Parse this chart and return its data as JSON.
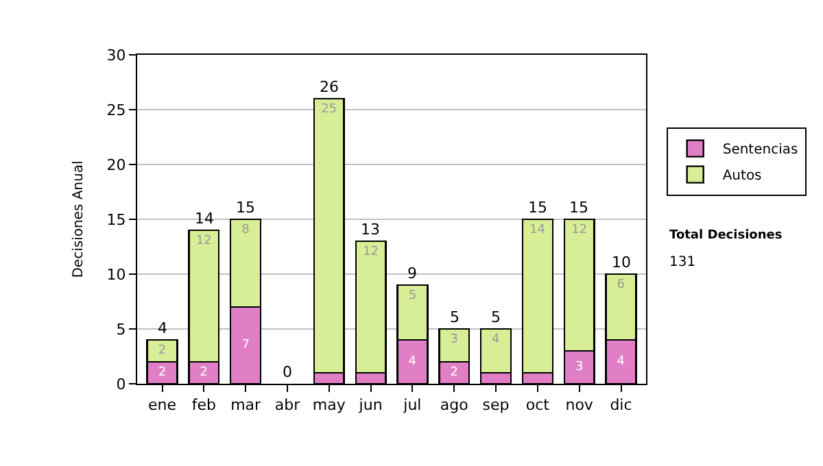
{
  "chart_data": {
    "type": "bar",
    "stacked": true,
    "ylabel": "Decisiones Anual",
    "categories": [
      "ene",
      "feb",
      "mar",
      "abr",
      "may",
      "jun",
      "jul",
      "ago",
      "sep",
      "oct",
      "nov",
      "dic"
    ],
    "series": [
      {
        "name": "Sentencias",
        "color": "#e07fc6",
        "values": [
          2,
          2,
          7,
          0,
          1,
          1,
          4,
          2,
          1,
          1,
          3,
          4
        ],
        "value_labels": [
          "2",
          "2",
          "7",
          null,
          null,
          null,
          "4",
          "2",
          null,
          null,
          "3",
          "4"
        ]
      },
      {
        "name": "Autos",
        "color": "#d8ee96",
        "values": [
          2,
          12,
          8,
          0,
          25,
          12,
          5,
          3,
          4,
          14,
          12,
          6
        ],
        "value_labels": [
          "2",
          "12",
          "8",
          null,
          "25",
          "12",
          "5",
          "3",
          "4",
          "14",
          "12",
          "6"
        ]
      }
    ],
    "totals": [
      "4",
      "14",
      "15",
      "0",
      "26",
      "13",
      "9",
      "5",
      "5",
      "15",
      "15",
      "10"
    ],
    "ylim": [
      0,
      30
    ],
    "yticks": [
      0,
      5,
      10,
      15,
      20,
      25,
      30
    ],
    "grid": "y",
    "legend": "right",
    "annotations": [
      "Total Decisiones",
      "131"
    ]
  }
}
